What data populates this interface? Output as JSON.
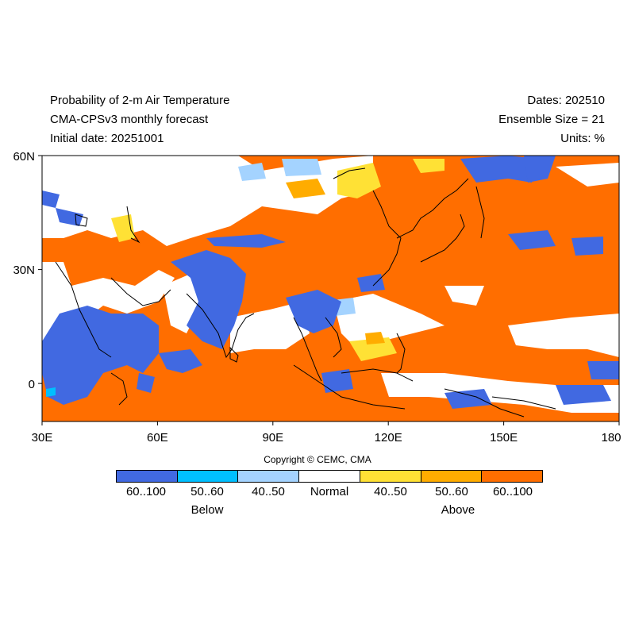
{
  "header": {
    "title": "Probability of 2-m Air Temperature",
    "model": "CMA-CPSv3 monthly forecast",
    "initial_date": "Initial date: 20251001",
    "dates": "Dates: 202510",
    "ensemble": "Ensemble Size = 21",
    "units": "Units: %"
  },
  "map": {
    "lon_range": [
      30,
      180
    ],
    "lat_range": [
      -10,
      60
    ],
    "x_ticks": [
      "30E",
      "60E",
      "90E",
      "120E",
      "150E",
      "180"
    ],
    "y_ticks": [
      "60N",
      "30N",
      "0"
    ],
    "colors": {
      "below_60_100": "#4169e1",
      "below_50_60": "#00bfff",
      "below_40_50": "#a4d3ff",
      "normal": "#ffffff",
      "above_40_50": "#ffe135",
      "above_50_60": "#ffac00",
      "above_60_100": "#ff6e00"
    }
  },
  "copyright": "Copyright © CEMC, CMA",
  "legend": {
    "bins": [
      {
        "label": "60..100",
        "color": "#4169e1"
      },
      {
        "label": "50..60",
        "color": "#00bfff"
      },
      {
        "label": "40..50",
        "color": "#a4d3ff"
      },
      {
        "label": "Normal",
        "color": "#ffffff"
      },
      {
        "label": "40..50",
        "color": "#ffe135"
      },
      {
        "label": "50..60",
        "color": "#ffac00"
      },
      {
        "label": "60..100",
        "color": "#ff6e00"
      }
    ],
    "below_label": "Below",
    "above_label": "Above"
  }
}
